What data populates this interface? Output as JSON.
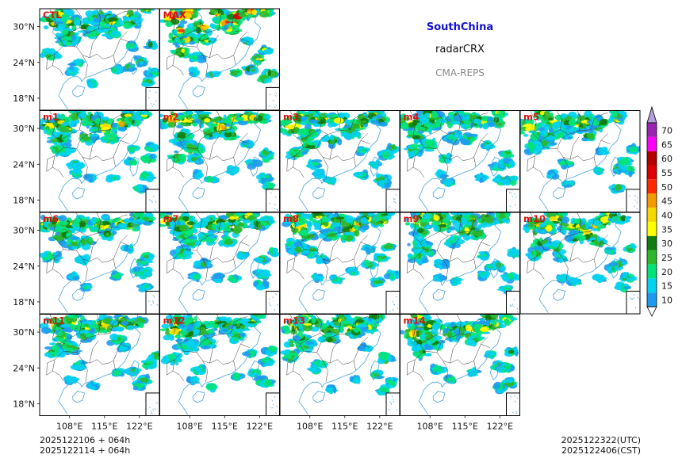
{
  "header": {
    "region": "SouthChina",
    "variable": "radarCRX",
    "system": "CMA-REPS"
  },
  "footer": {
    "init_utc": "2025122106  +  064h",
    "init_cst": "2025122114  +  064h",
    "valid_utc": "2025122322(UTC)",
    "valid_cst": "2025122406(CST)"
  },
  "colors": {
    "land_border": "#3a3a3a",
    "coast": "#4aa3d8",
    "title": "#1212cc",
    "label": "#e01010"
  },
  "chart_data": {
    "type": "heatmap",
    "title": "SouthChina radarCRX CMA-REPS",
    "panels": [
      "CTL",
      "MAX",
      "m1",
      "m2",
      "m3",
      "m4",
      "m5",
      "m6",
      "m7",
      "m8",
      "m9",
      "m10",
      "m11",
      "m12",
      "m13",
      "m14"
    ],
    "lat_ticks": [
      "30°N",
      "24°N",
      "18°N"
    ],
    "lon_ticks": [
      "108°E",
      "115°E",
      "122°E"
    ],
    "lon_range": [
      102,
      126
    ],
    "lat_range": [
      16,
      33
    ],
    "colorbar": {
      "levels": [
        10,
        15,
        20,
        25,
        30,
        35,
        40,
        45,
        50,
        55,
        60,
        65,
        70
      ],
      "colors": [
        "#1d9bf0",
        "#00d2f0",
        "#00e37a",
        "#2db72d",
        "#0f7d0f",
        "#ffff00",
        "#f5d800",
        "#f39c00",
        "#ff2a00",
        "#dd0000",
        "#b50000",
        "#ff00ff",
        "#9a23b0"
      ],
      "extend": "both",
      "under_color": "#ffffff",
      "over_color": "#b39ddb"
    },
    "intensity": {
      "CTL": 0.9,
      "MAX": 1.6,
      "m1": 1.0,
      "m2": 1.1,
      "m3": 1.0,
      "m4": 0.9,
      "m5": 0.9,
      "m6": 0.9,
      "m7": 1.0,
      "m8": 1.0,
      "m9": 0.9,
      "m10": 1.1,
      "m11": 1.0,
      "m12": 0.9,
      "m13": 1.0,
      "m14": 1.0
    }
  }
}
